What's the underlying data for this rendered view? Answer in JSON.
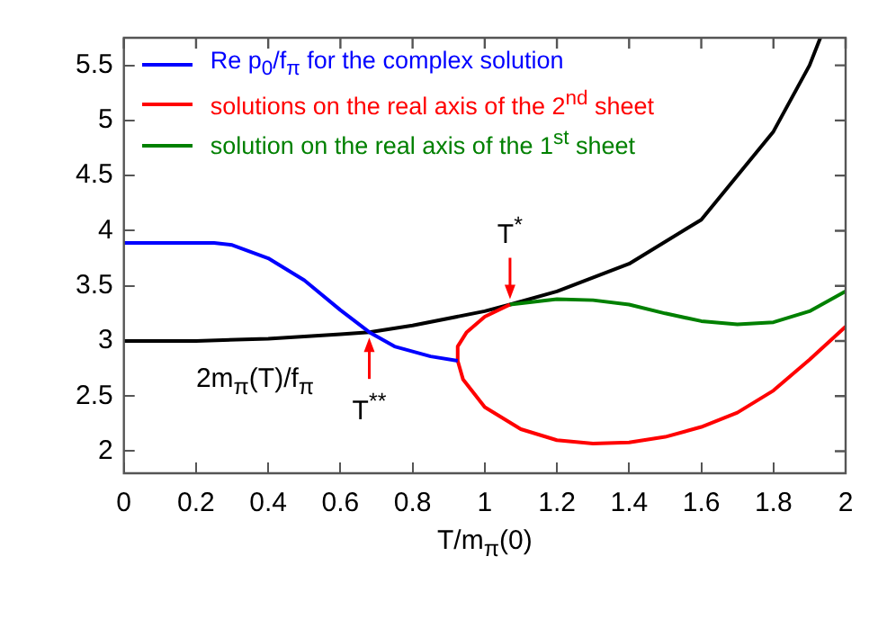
{
  "chart_data": {
    "type": "line",
    "xlabel": "T/m$_{π}$(0)",
    "xlim": [
      0,
      2
    ],
    "xticks": [
      0,
      0.2,
      0.4,
      0.6,
      0.8,
      1,
      1.2,
      1.4,
      1.6,
      1.8,
      2
    ],
    "ylim": [
      1.8,
      5.75
    ],
    "yticks": [
      2,
      2.5,
      3,
      3.5,
      4,
      4.5,
      5,
      5.5
    ],
    "grid": false,
    "legend": "top left",
    "marker": "none",
    "line_style": "solid",
    "series": [
      {
        "name": "Re p$_{0}$/f$_{π}$ for the complex solution",
        "color": "#0000ff",
        "x": [
          0,
          0.25,
          0.3,
          0.4,
          0.5,
          0.6,
          0.68,
          0.75,
          0.85,
          0.925
        ],
        "values": [
          3.89,
          3.89,
          3.87,
          3.75,
          3.55,
          3.28,
          3.08,
          2.95,
          2.86,
          2.82
        ]
      },
      {
        "name": "solutions on the real axis  of the 2$^{nd}$ sheet",
        "color": "#ff0000",
        "x": [
          1.07,
          1.0,
          0.95,
          0.925,
          0.925,
          0.94,
          1.0,
          1.1,
          1.2,
          1.3,
          1.4,
          1.5,
          1.6,
          1.7,
          1.8,
          1.9,
          2.0
        ],
        "values": [
          3.33,
          3.22,
          3.08,
          2.95,
          2.82,
          2.65,
          2.4,
          2.2,
          2.1,
          2.07,
          2.08,
          2.13,
          2.22,
          2.35,
          2.55,
          2.83,
          3.13
        ]
      },
      {
        "name": "solution on the real axis of the 1$^{st}$ sheet",
        "color": "#008000",
        "x": [
          1.07,
          1.2,
          1.3,
          1.4,
          1.5,
          1.6,
          1.7,
          1.8,
          1.9,
          2.0
        ],
        "values": [
          3.33,
          3.38,
          3.37,
          3.33,
          3.25,
          3.18,
          3.15,
          3.17,
          3.27,
          3.45
        ]
      },
      {
        "name": "2m$_{π}$(T)/f$_{π}$",
        "color": "#000000",
        "x": [
          0,
          0.2,
          0.4,
          0.6,
          0.68,
          0.8,
          1.0,
          1.07,
          1.2,
          1.4,
          1.6,
          1.8,
          1.9,
          1.93
        ],
        "values": [
          3.0,
          3.0,
          3.02,
          3.06,
          3.08,
          3.14,
          3.27,
          3.33,
          3.45,
          3.7,
          4.1,
          4.9,
          5.5,
          5.75
        ]
      }
    ],
    "annotations": [
      {
        "text": "T$^{*}$",
        "x": 1.07,
        "y": 3.33
      },
      {
        "text": "T$^{**}$",
        "x": 0.68,
        "y": 3.08
      }
    ]
  }
}
